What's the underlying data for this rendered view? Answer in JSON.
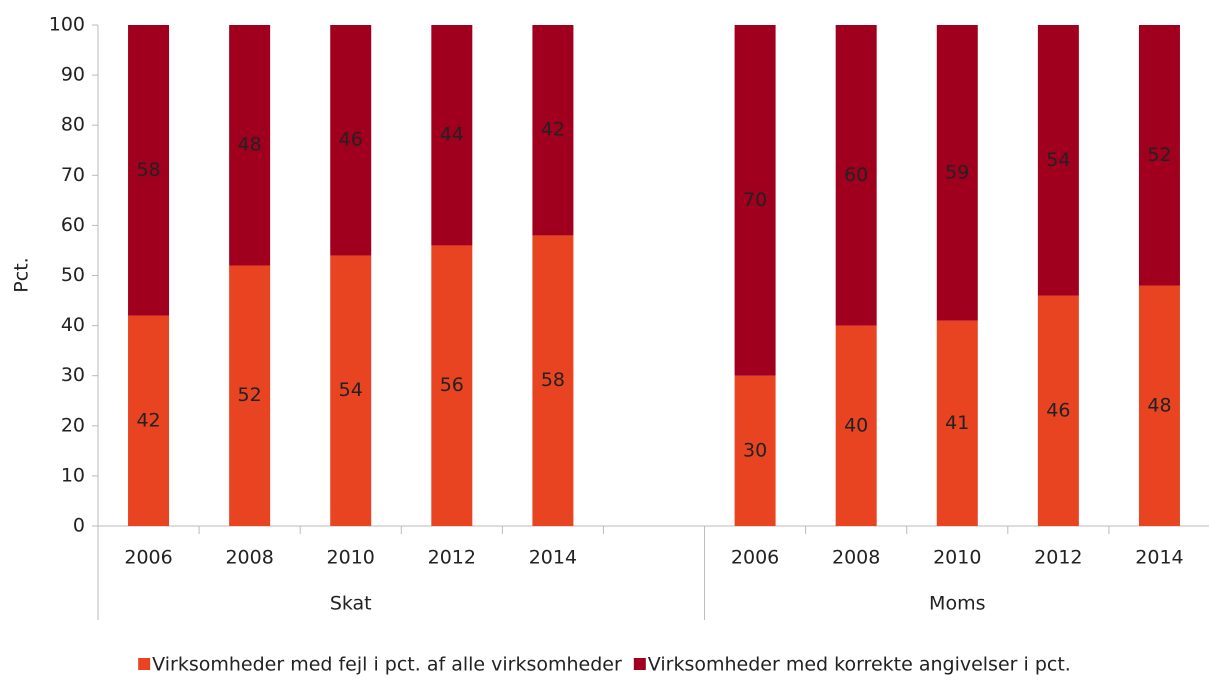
{
  "chart_data": {
    "type": "stacked_bar",
    "y_label": "Pct.",
    "groups": [
      {
        "name": "Skat",
        "categories": [
          "2006",
          "2008",
          "2010",
          "2012",
          "2014"
        ]
      },
      {
        "name": "Moms",
        "categories": [
          "2006",
          "2008",
          "2010",
          "2012",
          "2014"
        ]
      }
    ],
    "series": [
      {
        "name": "Virksomheder med fejl i pct. af alle virksomheder",
        "color": "#e84421",
        "values": [
          42,
          52,
          54,
          56,
          58,
          30,
          40,
          41,
          46,
          48
        ]
      },
      {
        "name": "Virksomheder med korrekte angivelser i pct.",
        "color": "#a0001e",
        "values": [
          58,
          48,
          46,
          44,
          42,
          70,
          60,
          59,
          54,
          52
        ]
      }
    ],
    "ylim": [
      0,
      100
    ],
    "yticks": [
      0,
      10,
      20,
      30,
      40,
      50,
      60,
      70,
      80,
      90,
      100
    ]
  }
}
